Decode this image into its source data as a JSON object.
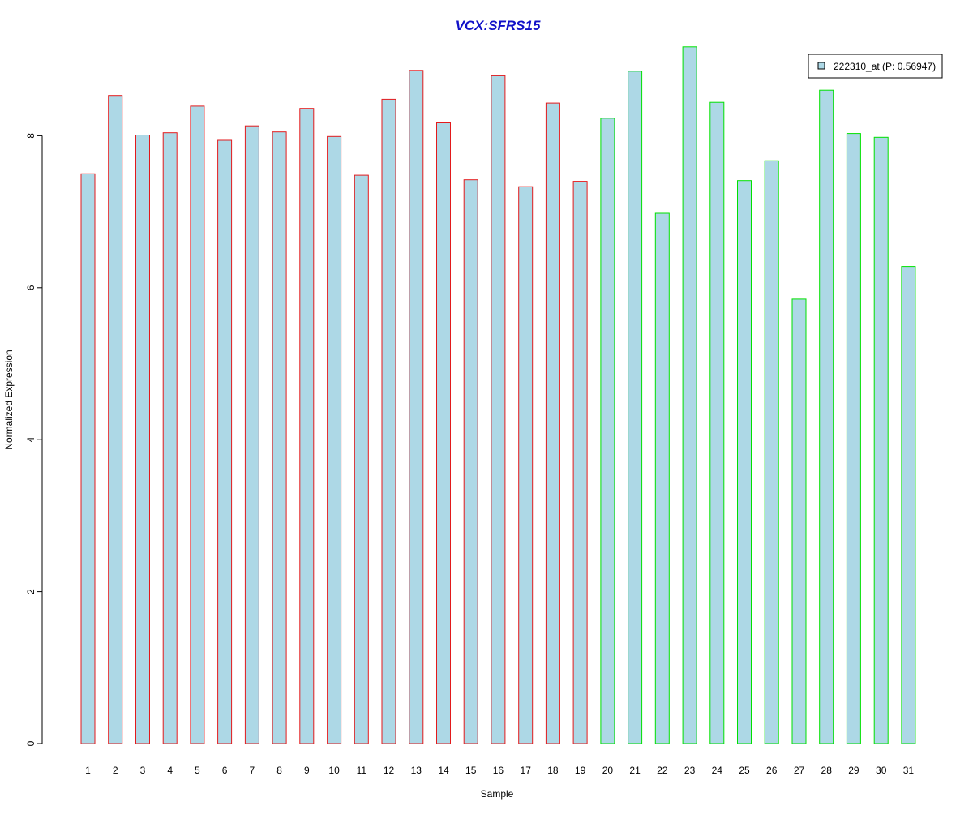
{
  "chart_data": {
    "type": "bar",
    "title": "VCX:SFRS15",
    "xlabel": "Sample",
    "ylabel": "Normalized Expression",
    "categories": [
      "1",
      "2",
      "3",
      "4",
      "5",
      "6",
      "7",
      "8",
      "9",
      "10",
      "11",
      "12",
      "13",
      "14",
      "15",
      "16",
      "17",
      "18",
      "19",
      "20",
      "21",
      "22",
      "23",
      "24",
      "25",
      "26",
      "27",
      "28",
      "29",
      "30",
      "31"
    ],
    "series": [
      {
        "name": "222310_at (P: 0.56947)",
        "values": [
          7.5,
          8.53,
          8.01,
          8.04,
          8.39,
          7.94,
          8.13,
          8.05,
          8.36,
          7.99,
          7.48,
          8.48,
          8.86,
          8.17,
          7.42,
          8.79,
          7.33,
          8.43,
          7.4,
          8.23,
          8.85,
          6.98,
          9.17,
          8.44,
          7.41,
          7.67,
          5.85,
          8.6,
          8.03,
          7.98,
          6.28
        ]
      }
    ],
    "groups": [
      {
        "samples": "1-19",
        "border_color": "#e31a1c"
      },
      {
        "samples": "20-31",
        "border_color": "#00e000"
      }
    ],
    "bar_fill": "#add8e6",
    "title_color": "#1010c8",
    "ylim": [
      0,
      9.2
    ],
    "yticks": [
      0,
      2,
      4,
      6,
      8
    ],
    "legend": {
      "position": "top-right",
      "label": "222310_at (P: 0.56947)",
      "swatch_color": "#add8e6"
    },
    "grid": false
  }
}
